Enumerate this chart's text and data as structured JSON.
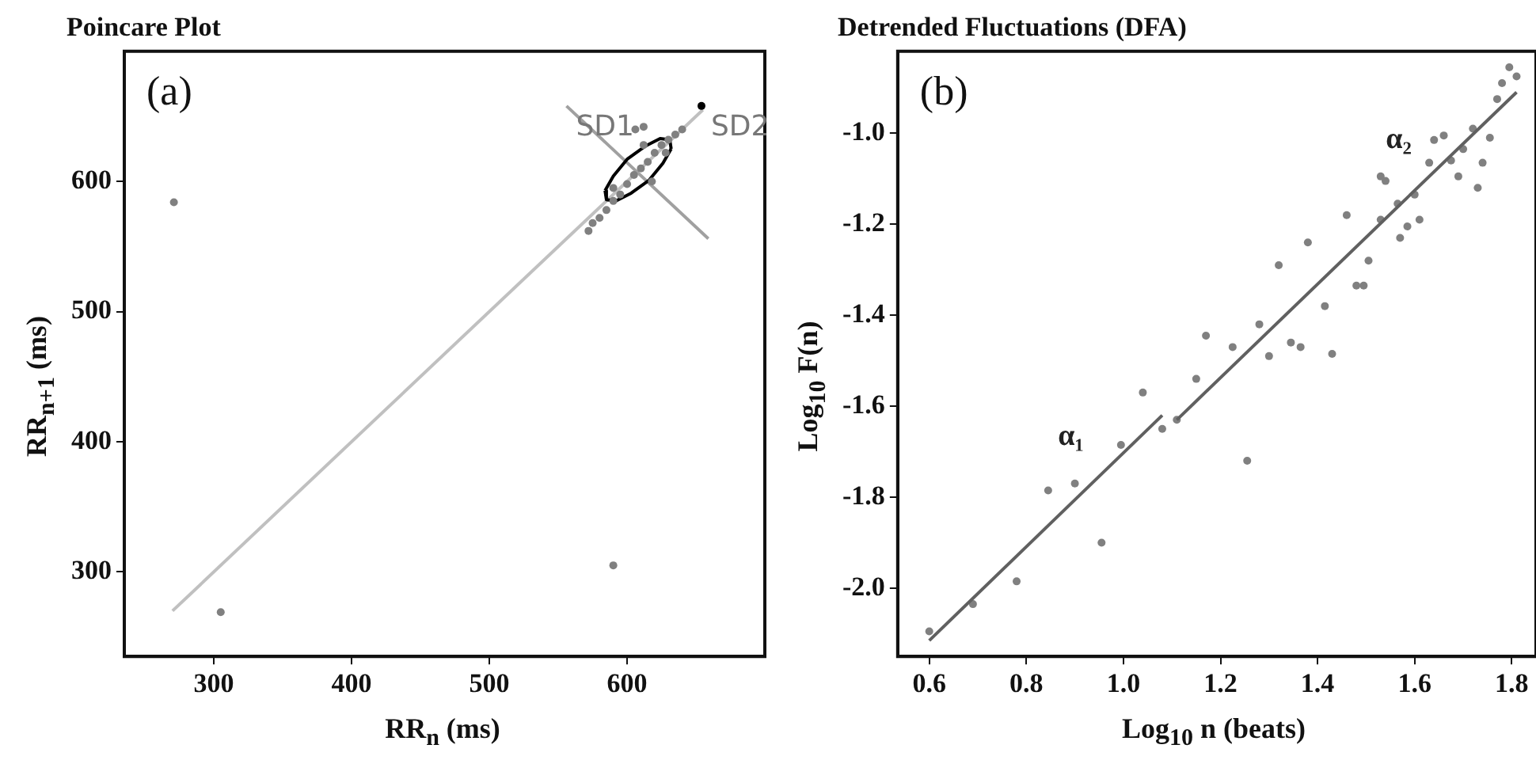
{
  "chart_data": [
    {
      "type": "scatter",
      "title": "Poincare Plot",
      "xlabel": "RR$_{n}$ (ms)",
      "ylabel": "RR$_{n+1}$ (ms)",
      "xlim": [
        235,
        700
      ],
      "ylim": [
        235,
        700
      ],
      "xticks": [
        300,
        400,
        500,
        600
      ],
      "yticks": [
        300,
        400,
        500,
        600
      ],
      "annotations": [
        "(a)",
        {
          "text": "SD1",
          "x": 556,
          "y": 658
        },
        {
          "text": "SD2",
          "x": 654,
          "y": 658
        }
      ],
      "series": [
        {
          "type": "line",
          "marker": "none",
          "color": "#c0c0c0",
          "x": [
            270,
            655
          ],
          "values": [
            270,
            655
          ]
        },
        {
          "type": "line",
          "marker": "none",
          "color": "#a0a0a0",
          "x": [
            556,
            659
          ],
          "values": [
            658,
            556
          ]
        },
        {
          "type": "line",
          "marker": "none",
          "color": "#000000",
          "x": [
            584,
            590,
            600,
            613,
            624,
            631,
            632
          ],
          "values": [
            593,
            604,
            617,
            627,
            633,
            632,
            625
          ]
        },
        {
          "type": "line",
          "marker": "none",
          "color": "#000000",
          "x": [
            584,
            585,
            592,
            603,
            616,
            626,
            632
          ],
          "values": [
            593,
            586,
            585,
            591,
            601,
            614,
            625
          ]
        },
        {
          "marker": "circle",
          "color": "#808080",
          "x": [
            271,
            305,
            590,
            572,
            575,
            580,
            585,
            590,
            595,
            600,
            605,
            610,
            615,
            620,
            625,
            630,
            635,
            640,
            618,
            628,
            590,
            612,
            606,
            612
          ],
          "values": [
            584,
            269,
            305,
            562,
            568,
            572,
            578,
            585,
            590,
            598,
            605,
            610,
            615,
            622,
            628,
            632,
            636,
            640,
            600,
            622,
            595,
            628,
            640,
            642
          ]
        },
        {
          "marker": "circle",
          "color": "#000000",
          "x": [
            654
          ],
          "values": [
            658
          ]
        }
      ]
    },
    {
      "type": "scatter",
      "title": "Detrended Fluctuations (DFA)",
      "xlabel": "Log$_{10}$ n (beats)",
      "ylabel": "Log$_{10}$ F(n)",
      "xlim": [
        0.535,
        1.85
      ],
      "ylim": [
        -2.15,
        -0.82
      ],
      "xticks": [
        0.6,
        0.8,
        {
          "value": 1,
          "label": "1.0"
        },
        1.2,
        1.4,
        1.6,
        1.8
      ],
      "yticks": [
        {
          "value": -2,
          "label": "-2.0"
        },
        -1.8,
        -1.6,
        -1.4,
        -1.2,
        {
          "value": -1,
          "label": "-1.0"
        }
      ],
      "annotations": [
        "(b)"
      ],
      "series": [
        {
          "marker": "circle",
          "color": "#808080",
          "x": [
            0.6,
            0.69,
            0.78,
            0.845,
            0.9,
            0.955,
            0.995,
            1.04,
            1.08,
            1.11,
            1.15,
            1.255,
            1.17,
            1.225,
            1.28,
            1.3,
            1.32,
            1.345,
            1.365,
            1.38,
            1.415,
            1.43,
            1.46,
            1.48,
            1.495,
            1.505,
            1.53,
            1.54,
            1.53,
            1.565,
            1.57,
            1.585,
            1.6,
            1.61,
            1.63,
            1.64,
            1.66,
            1.675,
            1.69,
            1.7,
            1.72,
            1.74,
            1.73,
            1.755,
            1.77,
            1.78,
            1.795,
            1.81
          ],
          "values": [
            -2.095,
            -2.035,
            -1.985,
            -1.785,
            -1.77,
            -1.9,
            -1.685,
            -1.57,
            -1.65,
            -1.63,
            -1.54,
            -1.72,
            -1.445,
            -1.47,
            -1.42,
            -1.49,
            -1.29,
            -1.46,
            -1.47,
            -1.24,
            -1.38,
            -1.485,
            -1.18,
            -1.335,
            -1.335,
            -1.28,
            -1.095,
            -1.105,
            -1.19,
            -1.155,
            -1.23,
            -1.205,
            -1.135,
            -1.19,
            -1.065,
            -1.015,
            -1.005,
            -1.06,
            -1.095,
            -1.035,
            -0.99,
            -1.065,
            -1.12,
            -1.01,
            -0.925,
            -0.89,
            -0.855,
            -0.875
          ]
        },
        {
          "type": "line",
          "marker": "none",
          "name": "α₁",
          "color": "#606060",
          "x": [
            0.6,
            1.08
          ],
          "values": [
            -2.115,
            -1.62
          ]
        },
        {
          "type": "line",
          "marker": "none",
          "name": "α₂",
          "color": "#606060",
          "x": [
            1.11,
            1.81
          ],
          "values": [
            -1.63,
            -0.91
          ]
        }
      ]
    }
  ]
}
